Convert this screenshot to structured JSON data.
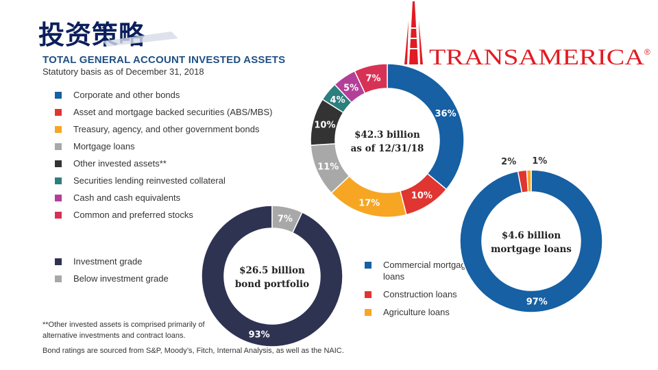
{
  "header": {
    "title": "投资策略",
    "logo_text": "TRANSAMERICA",
    "logo_mark": "®"
  },
  "section": {
    "heading": "TOTAL GENERAL ACCOUNT INVESTED ASSETS",
    "subtitle": "Statutory basis as of December 31, 2018"
  },
  "colors": {
    "blue": "#1660a3",
    "red": "#e03530",
    "orange": "#f6a623",
    "gray": "#a8a8a8",
    "black": "#333333",
    "teal": "#2d7f7e",
    "magenta": "#b43f99",
    "crimson": "#d73255",
    "navy": "#2f3352",
    "title_navy": "#0c1f5c"
  },
  "chart_data": [
    {
      "type": "pie",
      "center_label": [
        "$42.3 billion",
        "as of 12/31/18"
      ],
      "categories": [
        "Corporate and other bonds",
        "Asset and mortgage backed securities (ABS/MBS)",
        "Treasury, agency, and other government bonds",
        "Mortgage loans",
        "Other invested assets**",
        "Securities lending reinvested collateral",
        "Cash and cash equivalents",
        "Common and preferred stocks"
      ],
      "values": [
        36,
        10,
        17,
        11,
        10,
        4,
        5,
        7
      ],
      "labels": [
        "36%",
        "10%",
        "17%",
        "11%",
        "10%",
        "4%",
        "5%",
        "7%"
      ],
      "colors": [
        "#1660a3",
        "#e03530",
        "#f6a623",
        "#a8a8a8",
        "#333333",
        "#2d7f7e",
        "#b43f99",
        "#d73255"
      ]
    },
    {
      "type": "pie",
      "center_label": [
        "$26.5 billion",
        "bond portfolio"
      ],
      "categories": [
        "Investment grade",
        "Below investment grade"
      ],
      "values": [
        93,
        7
      ],
      "labels": [
        "93%",
        "7%"
      ],
      "colors": [
        "#2f3352",
        "#a8a8a8"
      ]
    },
    {
      "type": "pie",
      "center_label": [
        "$4.6 billion",
        "mortgage loans"
      ],
      "categories": [
        "Commercial mortgage loans",
        "Construction loans",
        "Agriculture loans"
      ],
      "values": [
        97,
        2,
        1
      ],
      "labels": [
        "97%",
        "2%",
        "1%"
      ],
      "colors": [
        "#1660a3",
        "#e03530",
        "#f6a623"
      ]
    }
  ],
  "footnotes": {
    "other_assets": "**Other invested assets is comprised primarily of alternative investments and contract loans.",
    "ratings": "Bond ratings are sourced from S&P, Moody’s, Fitch, Internal Analysis, as well as the NAIC."
  }
}
